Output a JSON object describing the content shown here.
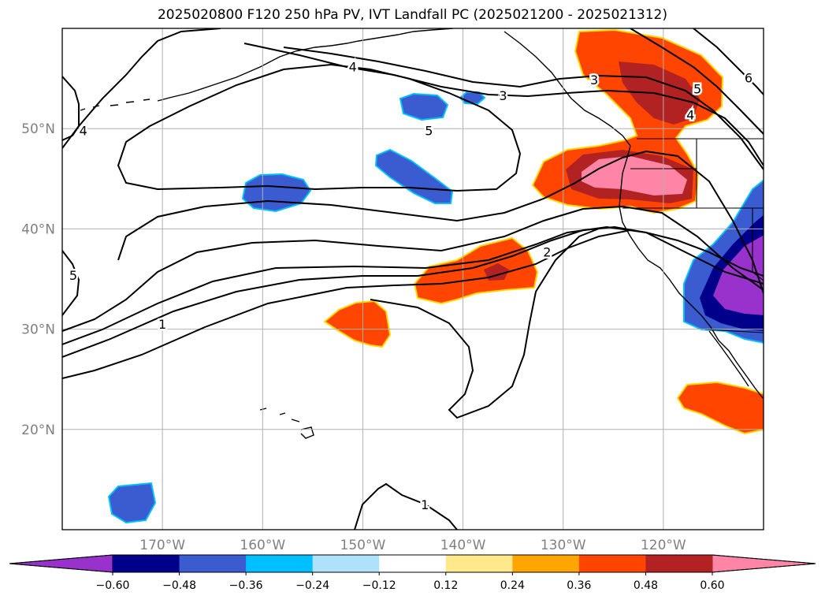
{
  "title": "2025020800 F120 250 hPa PV, IVT Landfall PC (2025021200 - 2025021312)",
  "map": {
    "projection": "PlateCarree",
    "lon_range": [
      -180,
      -110
    ],
    "lat_range": [
      10,
      60
    ],
    "lon_ticks": [
      {
        "value": -170,
        "label": "170°W"
      },
      {
        "value": -160,
        "label": "160°W"
      },
      {
        "value": -150,
        "label": "150°W"
      },
      {
        "value": -140,
        "label": "140°W"
      },
      {
        "value": -130,
        "label": "130°W"
      },
      {
        "value": -120,
        "label": "120°W"
      }
    ],
    "lat_ticks": [
      {
        "value": 20,
        "label": "20°N"
      },
      {
        "value": 30,
        "label": "30°N"
      },
      {
        "value": 40,
        "label": "40°N"
      },
      {
        "value": 50,
        "label": "50°N"
      }
    ],
    "gridlines": true,
    "contour_labels": [
      {
        "text": "4",
        "lon": -177.9,
        "lat": 49.8
      },
      {
        "text": "4",
        "lon": -151.0,
        "lat": 56.2
      },
      {
        "text": "3",
        "lon": -136.0,
        "lat": 53.3
      },
      {
        "text": "5",
        "lon": -143.4,
        "lat": 49.8
      },
      {
        "text": "3",
        "lon": -126.9,
        "lat": 54.9
      },
      {
        "text": "5",
        "lon": -116.6,
        "lat": 54.0
      },
      {
        "text": "4",
        "lon": -117.3,
        "lat": 51.4
      },
      {
        "text": "6",
        "lon": -111.5,
        "lat": 55.1
      },
      {
        "text": "5",
        "lon": -178.9,
        "lat": 35.4
      },
      {
        "text": "1",
        "lon": -170.0,
        "lat": 30.5
      },
      {
        "text": "2",
        "lon": -131.6,
        "lat": 37.7
      },
      {
        "text": "1",
        "lon": -143.8,
        "lat": 12.5
      }
    ]
  },
  "colorbar": {
    "colors": [
      "#9932cc",
      "#00008b",
      "#3b5bd1",
      "#00bfff",
      "#afe2fa",
      "#ffffff",
      "#ffe98c",
      "#ffa500",
      "#ff4500",
      "#b22222",
      "#ff85a6"
    ],
    "labels": [
      "−0.60",
      "−0.48",
      "−0.36",
      "−0.24",
      "−0.12",
      "0.12",
      "0.24",
      "0.36",
      "0.48",
      "0.60"
    ],
    "extend": "both"
  }
}
